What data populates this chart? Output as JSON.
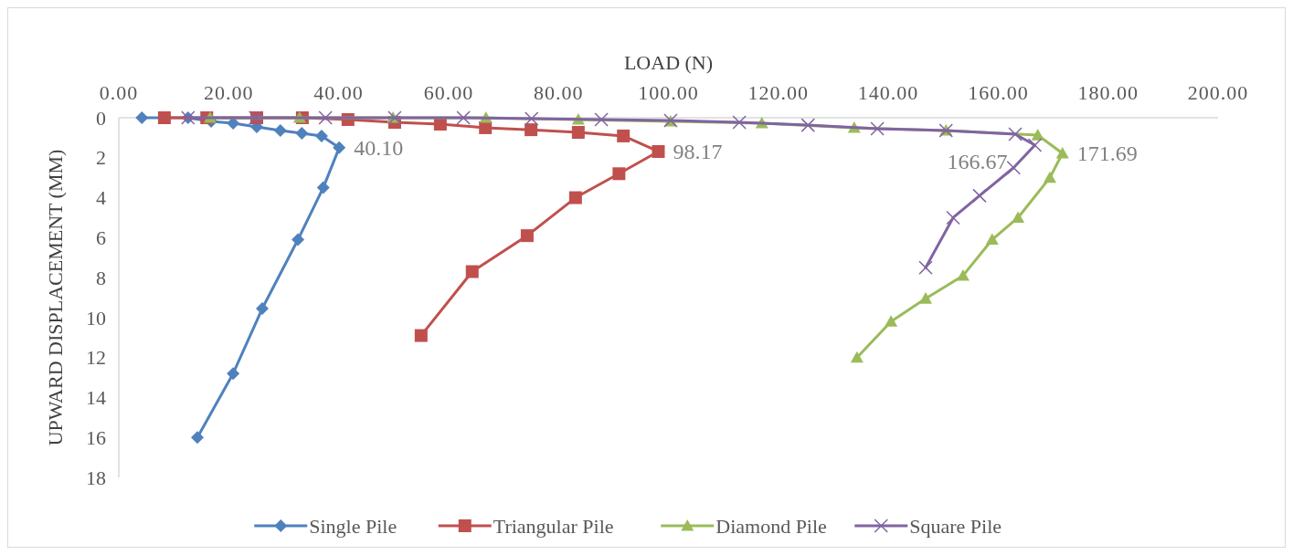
{
  "chart_data": {
    "type": "line",
    "xlabel": "LOAD (N)",
    "ylabel": "UPWARD DISPLACEMENT (MM)",
    "xlim": [
      0,
      200
    ],
    "ylim": [
      18,
      0
    ],
    "xticks": [
      {
        "value": 0,
        "label": "0.00"
      },
      {
        "value": 20,
        "label": "20.00"
      },
      {
        "value": 40,
        "label": "40.00"
      },
      {
        "value": 60,
        "label": "60.00"
      },
      {
        "value": 80,
        "label": "80.00"
      },
      {
        "value": 100,
        "label": "100.00"
      },
      {
        "value": 120,
        "label": "120.00"
      },
      {
        "value": 140,
        "label": "140.00"
      },
      {
        "value": 160,
        "label": "160.00"
      },
      {
        "value": 180,
        "label": "180.00"
      },
      {
        "value": 200,
        "label": "200.00"
      }
    ],
    "yticks": [
      0,
      2,
      4,
      6,
      8,
      10,
      12,
      14,
      16,
      18
    ],
    "grid": false,
    "legend": "bottom",
    "line_style": "solid",
    "series": [
      {
        "name": "Single Pile",
        "color": "#4f81bd",
        "marker": "diamond",
        "x": [
          4.2,
          12.6,
          16.8,
          20.8,
          25.1,
          29.4,
          33.3,
          36.9,
          40.1,
          37.2,
          32.6,
          26.1,
          20.8,
          14.3
        ],
        "values": [
          0,
          0,
          0.18,
          0.27,
          0.46,
          0.64,
          0.78,
          0.91,
          1.5,
          3.5,
          6.1,
          9.55,
          12.8,
          16.0
        ]
      },
      {
        "name": "Triangular Pile",
        "color": "#c0504d",
        "marker": "square",
        "x": [
          8.3,
          16.0,
          25.1,
          33.4,
          41.7,
          50.2,
          58.5,
          66.7,
          75.0,
          83.6,
          91.8,
          98.17,
          91.0,
          83.1,
          74.3,
          64.3,
          55.0
        ],
        "values": [
          0,
          0,
          0,
          0,
          0.09,
          0.23,
          0.32,
          0.5,
          0.6,
          0.73,
          0.91,
          1.69,
          2.8,
          4.0,
          5.9,
          7.7,
          10.9
        ]
      },
      {
        "name": "Diamond Pile",
        "color": "#9bbb59",
        "marker": "triangle",
        "x": [
          16.6,
          32.9,
          49.9,
          66.8,
          83.6,
          100.4,
          117.0,
          133.8,
          150.5,
          167.2,
          171.69,
          169.4,
          163.6,
          158.9,
          153.6,
          146.8,
          140.5,
          134.3
        ],
        "values": [
          0,
          0,
          0,
          0,
          0.09,
          0.18,
          0.27,
          0.5,
          0.64,
          0.87,
          1.78,
          3.0,
          5.0,
          6.1,
          7.9,
          9.05,
          10.2,
          12.0
        ]
      },
      {
        "name": "Square Pile",
        "color": "#8064a2",
        "marker": "cross",
        "x": [
          12.6,
          24.9,
          37.6,
          50.2,
          62.7,
          75.1,
          87.8,
          100.4,
          112.9,
          125.4,
          138.0,
          150.5,
          163.1,
          166.67,
          162.8,
          156.6,
          151.8,
          146.8
        ],
        "values": [
          0,
          0,
          0,
          0,
          0,
          0.05,
          0.09,
          0.14,
          0.23,
          0.37,
          0.55,
          0.64,
          0.82,
          1.37,
          2.5,
          3.9,
          5.0,
          7.5
        ]
      }
    ],
    "annotations": [
      {
        "text": "40.10",
        "x": 40.1,
        "y": 1.5
      },
      {
        "text": "98.17",
        "x": 98.17,
        "y": 1.69
      },
      {
        "text": "166.67",
        "x": 166.67,
        "y": 1.37
      },
      {
        "text": "171.69",
        "x": 171.69,
        "y": 1.78
      }
    ]
  }
}
